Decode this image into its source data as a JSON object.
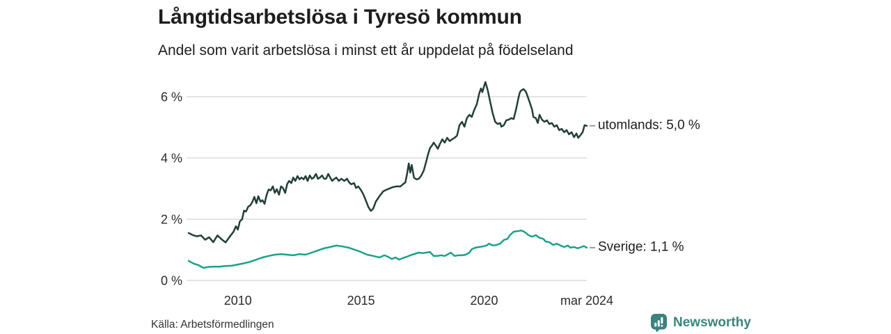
{
  "header": {
    "title": "Långtidsarbetslösa i Tyresö kommun",
    "subtitle": "Andel som varit arbetslösa i minst ett år uppdelat på födelseland"
  },
  "footer": {
    "source": "Källa: Arbetsförmedlingen",
    "brand": "Newsworthy"
  },
  "colors": {
    "utomlands_line": "#223e38",
    "sverige_line": "#1aa189",
    "grid": "#dcdcdc",
    "end_dash": "#999999",
    "text": "#1d1d1d",
    "brand_teal": "#3c837e",
    "background": "#ffffff"
  },
  "chart_data": {
    "type": "line",
    "title": "Långtidsarbetslösa i Tyresö kommun",
    "subtitle": "Andel som varit arbetslösa i minst ett år uppdelat på födelseland",
    "xlabel": "",
    "ylabel": "",
    "grid": "horizontal",
    "legend_position": "right-of-line-end",
    "x_axis": {
      "min": 2008.0,
      "max": 2024.17,
      "ticks": [
        {
          "x": 2010,
          "label": "2010"
        },
        {
          "x": 2015,
          "label": "2015"
        },
        {
          "x": 2020,
          "label": "2020"
        },
        {
          "x": 2024.17,
          "label": "mar 2024"
        }
      ]
    },
    "y_axis": {
      "min": 0,
      "max": 6.6,
      "unit": "%",
      "ticks": [
        {
          "v": 0,
          "label": "0 %"
        },
        {
          "v": 2,
          "label": "2 %"
        },
        {
          "v": 4,
          "label": "4 %"
        },
        {
          "v": 6,
          "label": "6 %"
        }
      ]
    },
    "series": [
      {
        "name": "utomlands",
        "end_label": "utomlands: 5,0 %",
        "last_value": 5.0,
        "color": "#223e38",
        "points": [
          [
            2008.0,
            1.55
          ],
          [
            2008.17,
            1.48
          ],
          [
            2008.33,
            1.44
          ],
          [
            2008.5,
            1.47
          ],
          [
            2008.67,
            1.33
          ],
          [
            2008.83,
            1.41
          ],
          [
            2009.0,
            1.25
          ],
          [
            2009.17,
            1.47
          ],
          [
            2009.33,
            1.35
          ],
          [
            2009.5,
            1.24
          ],
          [
            2009.67,
            1.43
          ],
          [
            2009.83,
            1.6
          ],
          [
            2009.92,
            1.77
          ],
          [
            2010.0,
            1.66
          ],
          [
            2010.08,
            1.93
          ],
          [
            2010.17,
            2.0
          ],
          [
            2010.25,
            2.28
          ],
          [
            2010.33,
            2.25
          ],
          [
            2010.42,
            2.41
          ],
          [
            2010.5,
            2.45
          ],
          [
            2010.58,
            2.55
          ],
          [
            2010.67,
            2.73
          ],
          [
            2010.75,
            2.52
          ],
          [
            2010.83,
            2.75
          ],
          [
            2010.92,
            2.57
          ],
          [
            2011.0,
            2.62
          ],
          [
            2011.08,
            2.5
          ],
          [
            2011.17,
            2.8
          ],
          [
            2011.25,
            2.97
          ],
          [
            2011.33,
            2.94
          ],
          [
            2011.42,
            3.07
          ],
          [
            2011.5,
            2.86
          ],
          [
            2011.58,
            2.98
          ],
          [
            2011.67,
            2.8
          ],
          [
            2011.75,
            3.07
          ],
          [
            2011.83,
            3.02
          ],
          [
            2011.92,
            2.86
          ],
          [
            2012.0,
            3.14
          ],
          [
            2012.08,
            3.25
          ],
          [
            2012.17,
            3.18
          ],
          [
            2012.25,
            3.36
          ],
          [
            2012.33,
            3.25
          ],
          [
            2012.42,
            3.41
          ],
          [
            2012.5,
            3.3
          ],
          [
            2012.58,
            3.36
          ],
          [
            2012.67,
            3.3
          ],
          [
            2012.75,
            3.41
          ],
          [
            2012.83,
            3.25
          ],
          [
            2012.92,
            3.43
          ],
          [
            2013.0,
            3.32
          ],
          [
            2013.08,
            3.36
          ],
          [
            2013.17,
            3.48
          ],
          [
            2013.25,
            3.32
          ],
          [
            2013.33,
            3.36
          ],
          [
            2013.42,
            3.43
          ],
          [
            2013.5,
            3.32
          ],
          [
            2013.58,
            3.32
          ],
          [
            2013.67,
            3.48
          ],
          [
            2013.75,
            3.36
          ],
          [
            2013.83,
            3.25
          ],
          [
            2013.92,
            3.32
          ],
          [
            2014.0,
            3.36
          ],
          [
            2014.1,
            3.25
          ],
          [
            2014.2,
            3.32
          ],
          [
            2014.32,
            3.25
          ],
          [
            2014.43,
            3.32
          ],
          [
            2014.52,
            3.2
          ],
          [
            2014.6,
            3.14
          ],
          [
            2014.72,
            3.18
          ],
          [
            2014.8,
            3.02
          ],
          [
            2014.89,
            3.07
          ],
          [
            2015.0,
            2.95
          ],
          [
            2015.1,
            2.8
          ],
          [
            2015.2,
            2.6
          ],
          [
            2015.3,
            2.4
          ],
          [
            2015.4,
            2.27
          ],
          [
            2015.5,
            2.35
          ],
          [
            2015.6,
            2.57
          ],
          [
            2015.75,
            2.75
          ],
          [
            2015.9,
            2.91
          ],
          [
            2016.0,
            2.95
          ],
          [
            2016.15,
            3.0
          ],
          [
            2016.3,
            3.05
          ],
          [
            2016.45,
            3.07
          ],
          [
            2016.6,
            3.07
          ],
          [
            2016.7,
            3.14
          ],
          [
            2016.8,
            3.2
          ],
          [
            2016.87,
            3.48
          ],
          [
            2016.94,
            3.82
          ],
          [
            2017.0,
            3.52
          ],
          [
            2017.06,
            3.77
          ],
          [
            2017.15,
            3.36
          ],
          [
            2017.25,
            3.3
          ],
          [
            2017.35,
            3.32
          ],
          [
            2017.45,
            3.43
          ],
          [
            2017.55,
            3.59
          ],
          [
            2017.65,
            3.89
          ],
          [
            2017.72,
            4.11
          ],
          [
            2017.8,
            4.32
          ],
          [
            2017.87,
            4.39
          ],
          [
            2017.95,
            4.5
          ],
          [
            2018.05,
            4.39
          ],
          [
            2018.12,
            4.3
          ],
          [
            2018.2,
            4.45
          ],
          [
            2018.3,
            4.61
          ],
          [
            2018.4,
            4.5
          ],
          [
            2018.5,
            4.66
          ],
          [
            2018.6,
            4.55
          ],
          [
            2018.7,
            4.61
          ],
          [
            2018.8,
            4.66
          ],
          [
            2018.9,
            4.73
          ],
          [
            2019.0,
            5.07
          ],
          [
            2019.1,
            5.18
          ],
          [
            2019.2,
            5.02
          ],
          [
            2019.3,
            5.3
          ],
          [
            2019.4,
            5.41
          ],
          [
            2019.5,
            5.34
          ],
          [
            2019.6,
            5.57
          ],
          [
            2019.7,
            5.75
          ],
          [
            2019.8,
            6.1
          ],
          [
            2019.87,
            6.27
          ],
          [
            2019.93,
            6.15
          ],
          [
            2020.0,
            6.35
          ],
          [
            2020.05,
            6.48
          ],
          [
            2020.15,
            6.2
          ],
          [
            2020.25,
            5.82
          ],
          [
            2020.35,
            5.45
          ],
          [
            2020.45,
            5.18
          ],
          [
            2020.55,
            5.11
          ],
          [
            2020.65,
            5.14
          ],
          [
            2020.7,
            5.02
          ],
          [
            2020.8,
            5.07
          ],
          [
            2020.9,
            5.23
          ],
          [
            2021.0,
            5.25
          ],
          [
            2021.1,
            5.3
          ],
          [
            2021.2,
            5.27
          ],
          [
            2021.3,
            5.6
          ],
          [
            2021.4,
            5.98
          ],
          [
            2021.45,
            6.14
          ],
          [
            2021.5,
            6.2
          ],
          [
            2021.6,
            6.25
          ],
          [
            2021.7,
            6.16
          ],
          [
            2021.75,
            6.05
          ],
          [
            2021.85,
            5.82
          ],
          [
            2021.95,
            5.57
          ],
          [
            2022.0,
            5.34
          ],
          [
            2022.1,
            5.3
          ],
          [
            2022.18,
            5.14
          ],
          [
            2022.25,
            5.41
          ],
          [
            2022.35,
            5.25
          ],
          [
            2022.45,
            5.18
          ],
          [
            2022.55,
            5.23
          ],
          [
            2022.65,
            5.11
          ],
          [
            2022.75,
            5.14
          ],
          [
            2022.85,
            5.02
          ],
          [
            2022.95,
            5.07
          ],
          [
            2023.05,
            4.91
          ],
          [
            2023.15,
            4.95
          ],
          [
            2023.25,
            4.84
          ],
          [
            2023.35,
            4.91
          ],
          [
            2023.45,
            4.77
          ],
          [
            2023.55,
            4.84
          ],
          [
            2023.65,
            4.68
          ],
          [
            2023.75,
            4.8
          ],
          [
            2023.82,
            4.66
          ],
          [
            2023.9,
            4.73
          ],
          [
            2024.0,
            4.84
          ],
          [
            2024.08,
            5.07
          ],
          [
            2024.17,
            5.05
          ]
        ]
      },
      {
        "name": "Sverige",
        "end_label": "Sverige: 1,1 %",
        "last_value": 1.1,
        "color": "#1aa189",
        "points": [
          [
            2008.0,
            0.64
          ],
          [
            2008.2,
            0.55
          ],
          [
            2008.4,
            0.5
          ],
          [
            2008.6,
            0.41
          ],
          [
            2008.8,
            0.44
          ],
          [
            2009.0,
            0.45
          ],
          [
            2009.25,
            0.45
          ],
          [
            2009.5,
            0.47
          ],
          [
            2009.75,
            0.48
          ],
          [
            2010.0,
            0.52
          ],
          [
            2010.25,
            0.56
          ],
          [
            2010.5,
            0.61
          ],
          [
            2010.75,
            0.68
          ],
          [
            2011.0,
            0.75
          ],
          [
            2011.25,
            0.8
          ],
          [
            2011.5,
            0.84
          ],
          [
            2011.75,
            0.86
          ],
          [
            2012.0,
            0.84
          ],
          [
            2012.25,
            0.82
          ],
          [
            2012.5,
            0.86
          ],
          [
            2012.75,
            0.84
          ],
          [
            2013.0,
            0.91
          ],
          [
            2013.25,
            0.98
          ],
          [
            2013.5,
            1.05
          ],
          [
            2013.75,
            1.09
          ],
          [
            2014.0,
            1.14
          ],
          [
            2014.25,
            1.11
          ],
          [
            2014.5,
            1.07
          ],
          [
            2014.75,
            1.0
          ],
          [
            2015.0,
            0.93
          ],
          [
            2015.25,
            0.84
          ],
          [
            2015.5,
            0.8
          ],
          [
            2015.75,
            0.75
          ],
          [
            2015.95,
            0.82
          ],
          [
            2016.1,
            0.77
          ],
          [
            2016.25,
            0.7
          ],
          [
            2016.4,
            0.75
          ],
          [
            2016.55,
            0.68
          ],
          [
            2016.7,
            0.73
          ],
          [
            2016.85,
            0.77
          ],
          [
            2017.0,
            0.82
          ],
          [
            2017.15,
            0.86
          ],
          [
            2017.35,
            0.91
          ],
          [
            2017.5,
            0.89
          ],
          [
            2017.65,
            0.91
          ],
          [
            2017.8,
            0.93
          ],
          [
            2017.95,
            0.8
          ],
          [
            2018.1,
            0.8
          ],
          [
            2018.25,
            0.82
          ],
          [
            2018.4,
            0.8
          ],
          [
            2018.5,
            0.84
          ],
          [
            2018.65,
            0.91
          ],
          [
            2018.8,
            0.8
          ],
          [
            2018.95,
            0.82
          ],
          [
            2019.1,
            0.82
          ],
          [
            2019.25,
            0.84
          ],
          [
            2019.4,
            0.91
          ],
          [
            2019.5,
            1.02
          ],
          [
            2019.65,
            1.07
          ],
          [
            2019.8,
            1.09
          ],
          [
            2019.95,
            1.11
          ],
          [
            2020.1,
            1.14
          ],
          [
            2020.2,
            1.2
          ],
          [
            2020.35,
            1.14
          ],
          [
            2020.5,
            1.16
          ],
          [
            2020.65,
            1.2
          ],
          [
            2020.8,
            1.32
          ],
          [
            2020.95,
            1.36
          ],
          [
            2021.05,
            1.48
          ],
          [
            2021.2,
            1.59
          ],
          [
            2021.35,
            1.61
          ],
          [
            2021.5,
            1.63
          ],
          [
            2021.6,
            1.6
          ],
          [
            2021.7,
            1.55
          ],
          [
            2021.8,
            1.48
          ],
          [
            2021.95,
            1.43
          ],
          [
            2022.1,
            1.48
          ],
          [
            2022.25,
            1.39
          ],
          [
            2022.4,
            1.36
          ],
          [
            2022.5,
            1.27
          ],
          [
            2022.65,
            1.25
          ],
          [
            2022.8,
            1.16
          ],
          [
            2022.95,
            1.2
          ],
          [
            2023.1,
            1.14
          ],
          [
            2023.25,
            1.09
          ],
          [
            2023.4,
            1.14
          ],
          [
            2023.5,
            1.07
          ],
          [
            2023.65,
            1.09
          ],
          [
            2023.8,
            1.05
          ],
          [
            2023.95,
            1.09
          ],
          [
            2024.05,
            1.12
          ],
          [
            2024.17,
            1.07
          ]
        ]
      }
    ]
  }
}
